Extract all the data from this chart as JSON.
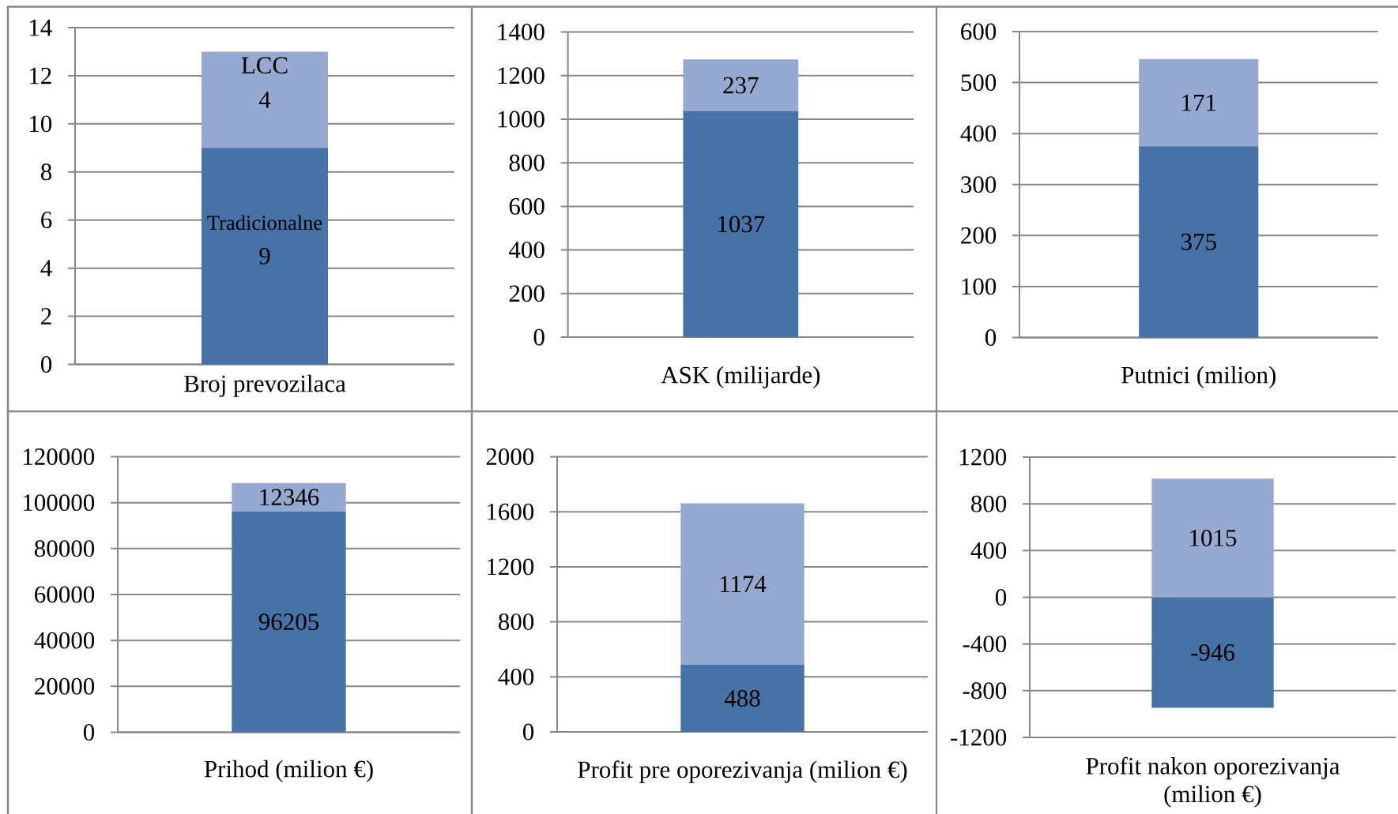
{
  "chart_data": [
    {
      "type": "bar",
      "stacked": true,
      "categories": [
        "Broj prevozilaca"
      ],
      "series": [
        {
          "name": "Tradicionalne",
          "color": "#4672a8",
          "values": [
            9
          ]
        },
        {
          "name": "LCC",
          "color": "#95a9d1",
          "values": [
            4
          ]
        }
      ],
      "ylim": [
        0,
        14
      ],
      "yticks": [
        0,
        2,
        4,
        6,
        8,
        10,
        12,
        14
      ],
      "grid": "y",
      "data_labels": true
    },
    {
      "type": "bar",
      "stacked": true,
      "categories": [
        "ASK (milijarde)"
      ],
      "series": [
        {
          "color": "#4672a8",
          "values": [
            1037
          ]
        },
        {
          "color": "#95a9d1",
          "values": [
            237
          ]
        }
      ],
      "ylim": [
        0,
        1400
      ],
      "yticks": [
        0,
        200,
        400,
        600,
        800,
        1000,
        1200,
        1400
      ],
      "grid": "y",
      "data_labels": true
    },
    {
      "type": "bar",
      "stacked": true,
      "categories": [
        "Putnici (milion)"
      ],
      "series": [
        {
          "color": "#4672a8",
          "values": [
            375
          ]
        },
        {
          "color": "#95a9d1",
          "values": [
            171
          ]
        }
      ],
      "ylim": [
        0,
        600
      ],
      "yticks": [
        0,
        100,
        200,
        300,
        400,
        500,
        600
      ],
      "grid": "y",
      "data_labels": true
    },
    {
      "type": "bar",
      "stacked": true,
      "categories": [
        "Prihod (milion €)"
      ],
      "series": [
        {
          "color": "#4672a8",
          "values": [
            96205
          ]
        },
        {
          "color": "#95a9d1",
          "values": [
            12346
          ]
        }
      ],
      "ylim": [
        0,
        120000
      ],
      "yticks": [
        0,
        20000,
        40000,
        60000,
        80000,
        100000,
        120000
      ],
      "grid": "y",
      "data_labels": true
    },
    {
      "type": "bar",
      "stacked": true,
      "categories": [
        "Profit pre oporezivanja (milion €)"
      ],
      "series": [
        {
          "color": "#4672a8",
          "values": [
            488
          ]
        },
        {
          "color": "#95a9d1",
          "values": [
            1174
          ]
        }
      ],
      "ylim": [
        0,
        2000
      ],
      "yticks": [
        0,
        400,
        800,
        1200,
        1600,
        2000
      ],
      "grid": "y",
      "data_labels": true
    },
    {
      "type": "bar",
      "stacked": true,
      "categories": [
        "Profit nakon oporezivanja (milion €)"
      ],
      "series": [
        {
          "color": "#4672a8",
          "values": [
            -946
          ]
        },
        {
          "color": "#95a9d1",
          "values": [
            1015
          ]
        }
      ],
      "ylim": [
        -1200,
        1200
      ],
      "yticks": [
        -1200,
        -800,
        -400,
        0,
        400,
        800,
        1200
      ],
      "grid": "y",
      "data_labels": true
    }
  ]
}
